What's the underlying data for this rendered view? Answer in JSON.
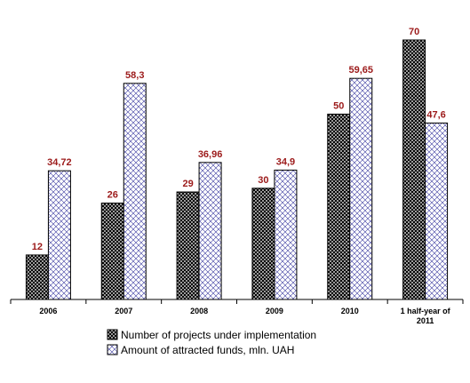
{
  "chart_data": {
    "type": "bar",
    "categories": [
      "2006",
      "2007",
      "2008",
      "2009",
      "2010",
      "1 half-year of 2011"
    ],
    "series": [
      {
        "name": "Number of projects under implementation",
        "values": [
          12,
          26,
          29,
          30,
          50,
          70
        ],
        "labels": [
          "12",
          "26",
          "29",
          "30",
          "50",
          "70"
        ],
        "pattern": "crosshatch-dark"
      },
      {
        "name": "Amount of attracted funds, mln. UAH",
        "values": [
          34.72,
          58.3,
          36.96,
          34.9,
          59.65,
          47.6
        ],
        "labels": [
          "34,72",
          "58,3",
          "36,96",
          "34,9",
          "59,65",
          "47,6"
        ],
        "pattern": "crosshatch-light"
      }
    ],
    "ylim": [
      0,
      70
    ],
    "grid": false,
    "legend_position": "bottom",
    "colors": {
      "label": "#9c1a1a",
      "axis": "#000000",
      "dark_fill": "#000000",
      "light_fill": "#ffffff",
      "hatch_light": "#3a3aa0"
    }
  }
}
